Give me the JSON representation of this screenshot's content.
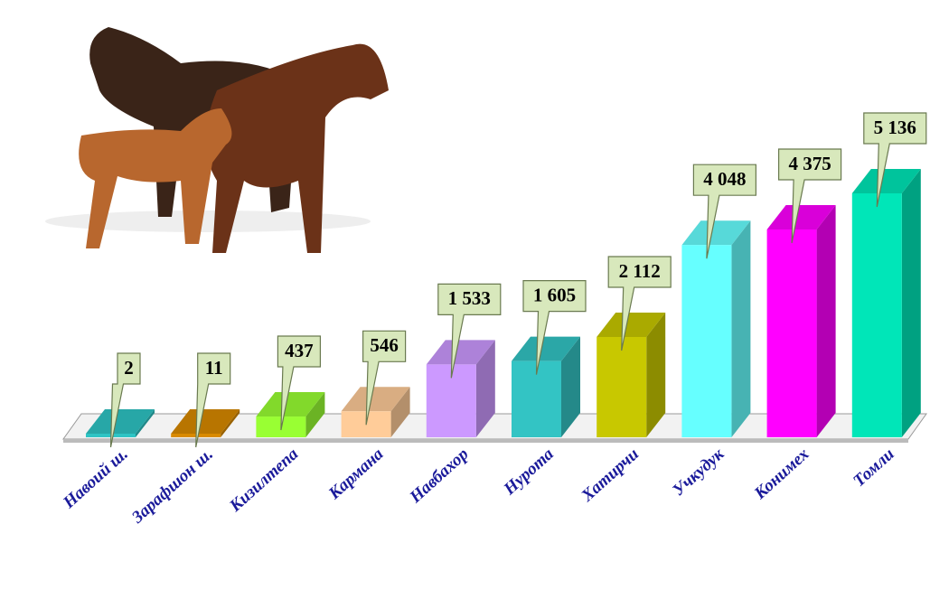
{
  "chart_data": {
    "type": "bar3d",
    "categories": [
      "Навоий ш.",
      "Зарафшон ш.",
      "Кизилтепа",
      "Кармана",
      "Навбахор",
      "Нурота",
      "Хатирчи",
      "Учкудук",
      "Конимех",
      "Томли"
    ],
    "values": [
      2,
      11,
      437,
      546,
      1533,
      1605,
      2112,
      4048,
      4375,
      5136
    ],
    "value_labels": [
      "2",
      "11",
      "437",
      "546",
      "1 533",
      "1 605",
      "2 112",
      "4 048",
      "4 375",
      "5 136"
    ],
    "colors": [
      "#2ec4c4",
      "#d98a00",
      "#99ff33",
      "#ffcc99",
      "#cc99ff",
      "#33c4c4",
      "#c8c800",
      "#66ffff",
      "#ff00ff",
      "#00e6b8"
    ]
  }
}
